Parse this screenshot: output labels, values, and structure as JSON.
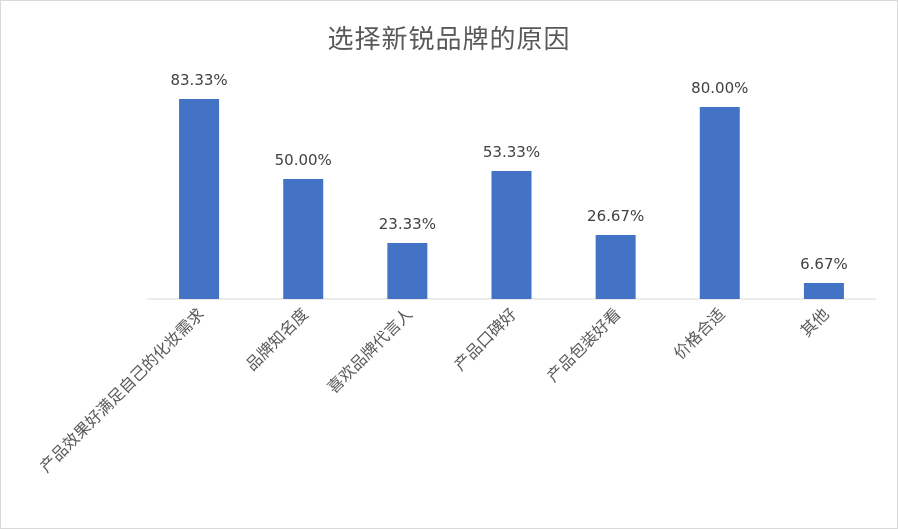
{
  "chart_data": {
    "type": "bar",
    "title": "选择新锐品牌的原因",
    "xlabel": "",
    "ylabel": "",
    "categories": [
      "产品效果好满足自己的化妆需求",
      "品牌知名度",
      "喜欢品牌代言人",
      "产品口碑好",
      "产品包装好看",
      "价格合适",
      "其他"
    ],
    "values": [
      83.33,
      50.0,
      23.33,
      53.33,
      26.67,
      80.0,
      6.67
    ],
    "data_labels": [
      "83.33%",
      "50.00%",
      "23.33%",
      "53.33%",
      "26.67%",
      "80.00%",
      "6.67%"
    ],
    "ylim": [
      0,
      100
    ],
    "grid": false,
    "legend": "none",
    "bar_color": "#4472c4"
  }
}
